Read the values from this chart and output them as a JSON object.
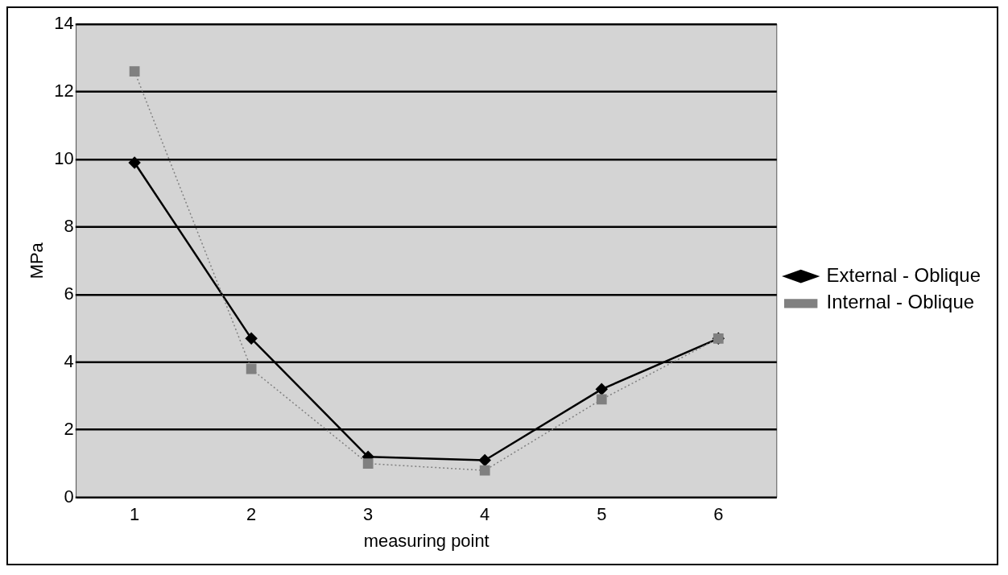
{
  "chart_data": {
    "type": "line",
    "xlabel": "measuring point",
    "ylabel": "MPa",
    "categories": [
      "1",
      "2",
      "3",
      "4",
      "5",
      "6"
    ],
    "series": [
      {
        "name": "External - Oblique",
        "color": "#000000",
        "values": [
          9.9,
          4.7,
          1.2,
          1.1,
          3.2,
          4.7
        ],
        "marker": "diamond",
        "line_style": "solid"
      },
      {
        "name": "Internal - Oblique",
        "color": "#808080",
        "values": [
          12.6,
          3.8,
          1.0,
          0.8,
          2.9,
          4.7
        ],
        "marker": "square",
        "line_style": "dotted"
      }
    ],
    "ylim": [
      0,
      14
    ],
    "yticks": [
      0,
      2,
      4,
      6,
      8,
      10,
      12,
      14
    ],
    "grid": "y",
    "legend": "right"
  }
}
